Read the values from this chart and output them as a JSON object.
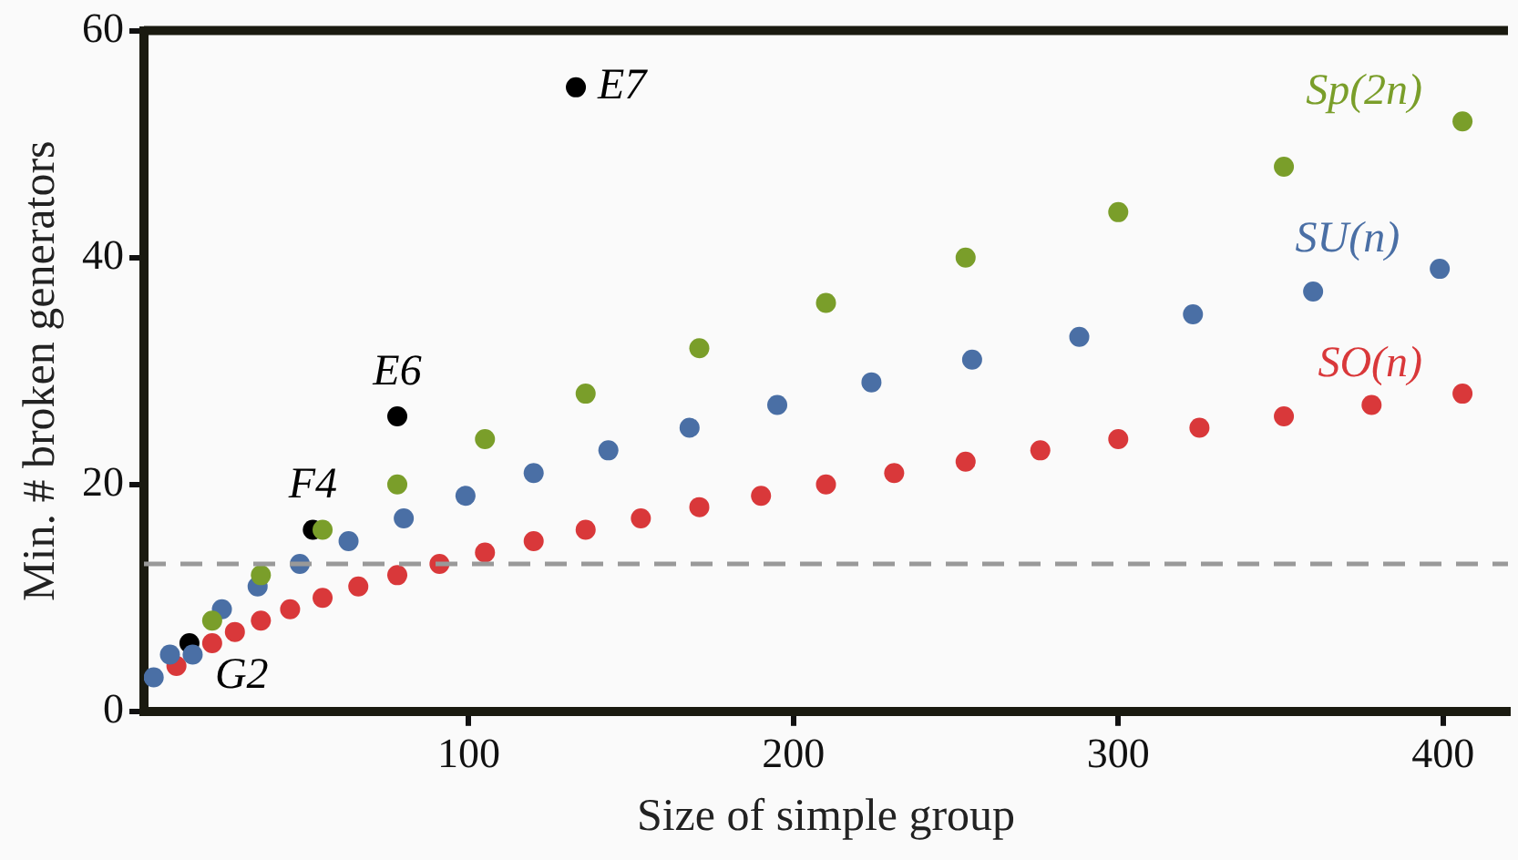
{
  "chart_data": {
    "type": "scatter",
    "xlabel": "Size of simple group",
    "ylabel": "Min. # broken generators",
    "xlim": [
      0,
      420
    ],
    "ylim": [
      0,
      60
    ],
    "xticks": [
      100,
      200,
      300,
      400
    ],
    "yticks": [
      0,
      20,
      40,
      60
    ],
    "grid": false,
    "legend": false,
    "marker": "circle",
    "series": [
      {
        "name": "Sp(2n)",
        "color": "#7a9e2a",
        "x": [
          21,
          36,
          55,
          78,
          105,
          136,
          171,
          210,
          253,
          300,
          351,
          406
        ],
        "values": [
          8,
          12,
          16,
          20,
          24,
          28,
          32,
          36,
          40,
          44,
          48,
          52
        ]
      },
      {
        "name": "SU(n)",
        "color": "#4a6fa5",
        "x": [
          3,
          8,
          15,
          24,
          35,
          48,
          63,
          80,
          99,
          120,
          143,
          168,
          195,
          224,
          255,
          288,
          323,
          360,
          399
        ],
        "values": [
          3,
          5,
          5,
          9,
          11,
          13,
          15,
          17,
          19,
          21,
          23,
          25,
          27,
          29,
          31,
          33,
          35,
          37,
          39
        ]
      },
      {
        "name": "SO(n)",
        "color": "#d9383a",
        "x": [
          10,
          21,
          28,
          36,
          45,
          55,
          66,
          78,
          91,
          105,
          120,
          136,
          153,
          171,
          190,
          210,
          231,
          253,
          276,
          300,
          325,
          351,
          378,
          406
        ],
        "values": [
          4,
          6,
          7,
          8,
          9,
          10,
          11,
          12,
          13,
          14,
          15,
          16,
          17,
          18,
          19,
          20,
          21,
          22,
          23,
          24,
          25,
          26,
          27,
          28
        ]
      },
      {
        "color": "#000000",
        "x": [
          14,
          52,
          78,
          133
        ],
        "values": [
          6,
          16,
          26,
          55
        ]
      }
    ],
    "ref_lines": [
      {
        "axis": "y",
        "value": 13,
        "color": "#999999",
        "line_style": "dashed"
      }
    ],
    "annotations": [
      {
        "text": "G2",
        "x": 14,
        "y": 6
      },
      {
        "text": "F4",
        "x": 52,
        "y": 16
      },
      {
        "text": "E6",
        "x": 78,
        "y": 26
      },
      {
        "text": "E7",
        "x": 133,
        "y": 55
      }
    ]
  }
}
